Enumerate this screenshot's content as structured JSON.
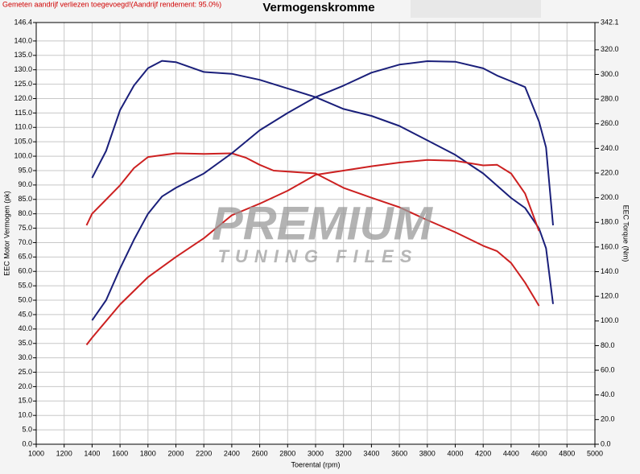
{
  "chart_data": {
    "type": "line",
    "header": "Gemeten aandrijf verliezen toegevoegd!(Aandrijf rendement: 95.0%)",
    "title": "Vermogenskromme",
    "x_label": "Toerental (rpm)",
    "y_label": "EEC Motor Vermogen (pk)",
    "y2_label": "EEC Torque (Nm)",
    "watermark": [
      "PREMIUM",
      "TUNING FILES"
    ],
    "grid": true,
    "xlim": [
      1000,
      5000
    ],
    "xticks": [
      1000,
      1200,
      1400,
      1600,
      1800,
      2000,
      2200,
      2400,
      2600,
      2800,
      3000,
      3200,
      3400,
      3600,
      3800,
      4000,
      4200,
      4400,
      4600,
      4800,
      5000
    ],
    "ylim": [
      0,
      146.4
    ],
    "yticks": [
      {
        "value": 0,
        "label": "0.0"
      },
      {
        "value": 5,
        "label": "5.0"
      },
      {
        "value": 10,
        "label": "10.0"
      },
      {
        "value": 15,
        "label": "15.0"
      },
      {
        "value": 20,
        "label": "20.0"
      },
      {
        "value": 25,
        "label": "25.0"
      },
      {
        "value": 30,
        "label": "30.0"
      },
      {
        "value": 35,
        "label": "35.0"
      },
      {
        "value": 40,
        "label": "40.0"
      },
      {
        "value": 45,
        "label": "45.0"
      },
      {
        "value": 50,
        "label": "50.0"
      },
      {
        "value": 55,
        "label": "55.0"
      },
      {
        "value": 60,
        "label": "60.0"
      },
      {
        "value": 65,
        "label": "65.0"
      },
      {
        "value": 70,
        "label": "70.0"
      },
      {
        "value": 75,
        "label": "75.0"
      },
      {
        "value": 80,
        "label": "80.0"
      },
      {
        "value": 85,
        "label": "85.0"
      },
      {
        "value": 90,
        "label": "90.0"
      },
      {
        "value": 95,
        "label": "95.0"
      },
      {
        "value": 100,
        "label": "100.0"
      },
      {
        "value": 105,
        "label": "105.0"
      },
      {
        "value": 110,
        "label": "110.0"
      },
      {
        "value": 115,
        "label": "115.0"
      },
      {
        "value": 120,
        "label": "120.0"
      },
      {
        "value": 125,
        "label": "125.0"
      },
      {
        "value": 130,
        "label": "130.0"
      },
      {
        "value": 135,
        "label": "135.0"
      },
      {
        "value": 140,
        "label": "140.0"
      },
      146.4
    ],
    "y2lim": [
      0,
      342.1
    ],
    "y2ticks": [
      {
        "value": 0,
        "label": "0.0"
      },
      {
        "value": 20,
        "label": "20.0"
      },
      {
        "value": 40,
        "label": "40.0"
      },
      {
        "value": 60,
        "label": "60.0"
      },
      {
        "value": 80,
        "label": "80.0"
      },
      {
        "value": 100,
        "label": "100.0"
      },
      {
        "value": 120,
        "label": "120.0"
      },
      {
        "value": 140,
        "label": "140.0"
      },
      {
        "value": 160,
        "label": "160.0"
      },
      {
        "value": 180,
        "label": "180.0"
      },
      {
        "value": 200,
        "label": "200.0"
      },
      {
        "value": 220,
        "label": "220.0"
      },
      {
        "value": 240,
        "label": "240.0"
      },
      {
        "value": 260,
        "label": "260.0"
      },
      {
        "value": 280,
        "label": "280.0"
      },
      {
        "value": 300,
        "label": "300.0"
      },
      {
        "value": 320,
        "label": "320.0"
      },
      342.1
    ],
    "series": [
      {
        "color": "#1a1f7a",
        "axis": "y2",
        "x": [
          1400,
          1500,
          1600,
          1700,
          1800,
          1900,
          2000,
          2200,
          2400,
          2600,
          2800,
          3000,
          3200,
          3400,
          3600,
          3800,
          4000,
          4200,
          4400,
          4500,
          4600,
          4650,
          4700
        ],
        "values": [
          216,
          238,
          271,
          291,
          305,
          311,
          310,
          302,
          300.5,
          295.6,
          288.6,
          281.6,
          272,
          266.4,
          258.2,
          246.5,
          234.8,
          219.7,
          199.8,
          191.6,
          175,
          159,
          113.8
        ]
      },
      {
        "color": "#cc2020",
        "axis": "y2",
        "x": [
          1360,
          1400,
          1600,
          1700,
          1800,
          2000,
          2200,
          2400,
          2500,
          2600,
          2700,
          3000,
          3200,
          3400,
          3600,
          3800,
          4000,
          4200,
          4300,
          4400,
          4500,
          4600
        ],
        "values": [
          177.6,
          187,
          210,
          224,
          233,
          236,
          235.5,
          236,
          232.5,
          226.7,
          222,
          219.7,
          208,
          200,
          192.3,
          181.8,
          172,
          161,
          156.6,
          147,
          131,
          112.2
        ]
      },
      {
        "color": "#1a1f7a",
        "x": [
          1400,
          1500,
          1600,
          1700,
          1800,
          1900,
          2000,
          2200,
          2400,
          2600,
          2800,
          3000,
          3200,
          3400,
          3600,
          3800,
          4000,
          4200,
          4300,
          4400,
          4500,
          4600,
          4650,
          4700
        ],
        "values": [
          43,
          50,
          61,
          71,
          80,
          86,
          89,
          94,
          101,
          109,
          115,
          120.5,
          124.5,
          129,
          131.8,
          133,
          132.8,
          130.5,
          128,
          126,
          124,
          112,
          103,
          76
        ]
      },
      {
        "color": "#cc2020",
        "x": [
          1360,
          1400,
          1600,
          1800,
          2000,
          2200,
          2400,
          2600,
          2800,
          3000,
          3200,
          3400,
          3600,
          3800,
          4000,
          4200,
          4300,
          4400,
          4500,
          4600
        ],
        "values": [
          34.5,
          37,
          48.5,
          58,
          65,
          71.5,
          79.5,
          83.5,
          88,
          93.5,
          95,
          96.5,
          97.8,
          98.7,
          98.4,
          96.8,
          97,
          94,
          87,
          74
        ]
      }
    ]
  }
}
